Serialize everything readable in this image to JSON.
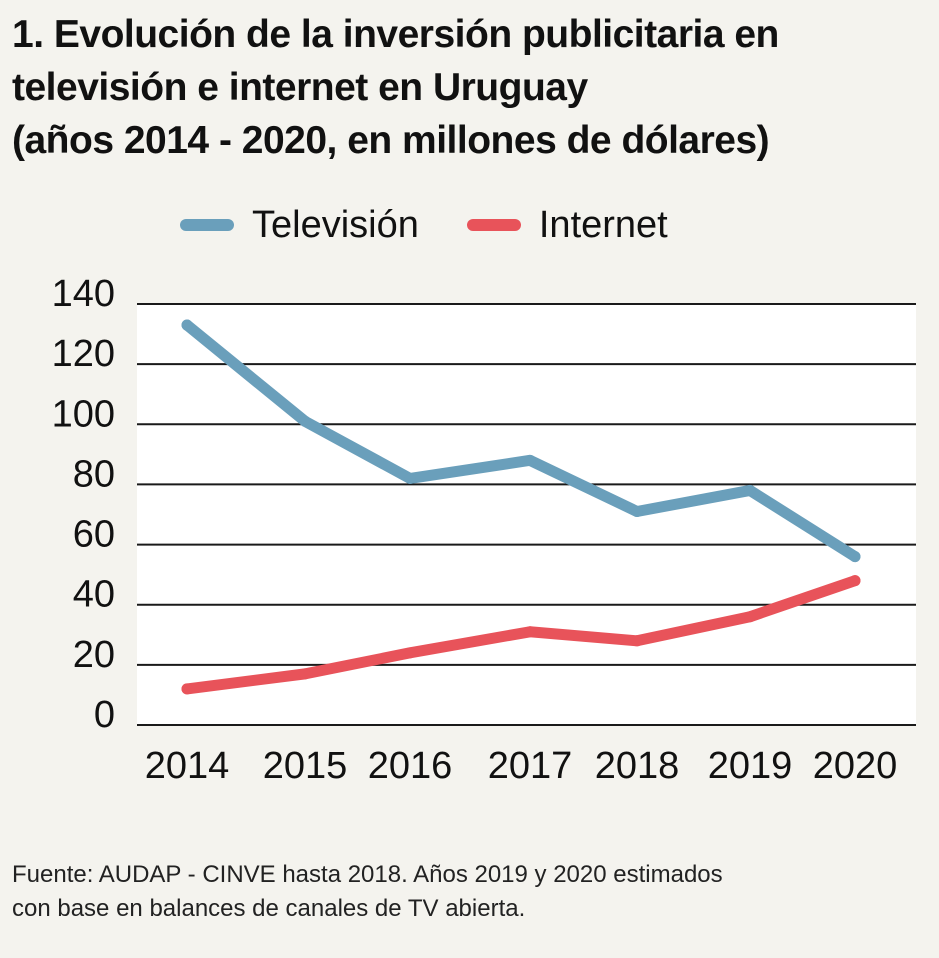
{
  "title_lines": [
    "1. Evolución de la inversión publicitaria en",
    "televisión e internet en Uruguay",
    "(años 2014 - 2020, en millones de dólares)"
  ],
  "source_lines": [
    "Fuente: AUDAP - CINVE hasta 2018. Años 2019 y 2020 estimados",
    "con base en balances de canales de TV abierta."
  ],
  "chart_data": {
    "type": "line",
    "categories": [
      "2014",
      "2015",
      "2016",
      "2017",
      "2018",
      "2019",
      "2020"
    ],
    "series": [
      {
        "name": "Televisión",
        "color": "#6a9fbb",
        "values": [
          133,
          101,
          82,
          88,
          71,
          78,
          56
        ]
      },
      {
        "name": "Internet",
        "color": "#e8535a",
        "values": [
          12,
          17,
          24,
          31,
          28,
          36,
          48
        ]
      }
    ],
    "yticks": [
      0,
      20,
      40,
      60,
      80,
      100,
      120,
      140
    ],
    "ylim": [
      0,
      140
    ],
    "grid": true,
    "legend_position": "top"
  }
}
